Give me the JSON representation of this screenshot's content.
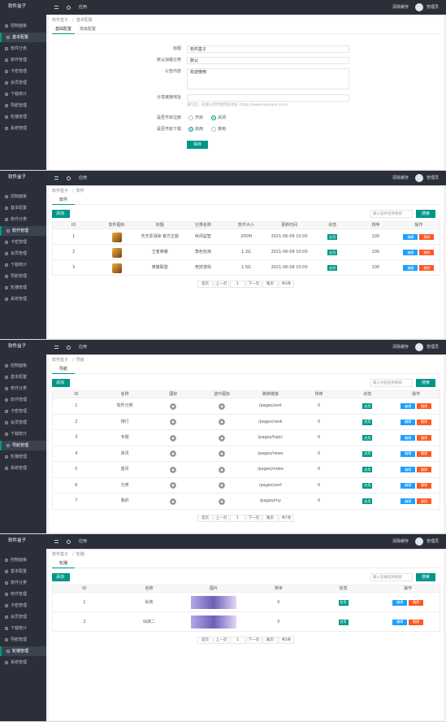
{
  "brand": "软件盒子",
  "menu": [
    "控制面板",
    "基本配置",
    "软件分类",
    "软件管理",
    "卡密管理",
    "会员管理",
    "下载统计",
    "导航管理",
    "轮播管理",
    "系统管理"
  ],
  "topbar": {
    "app": "应用",
    "cache": "清除缓存",
    "user": "管理员"
  },
  "screens": [
    {
      "active_menu": 1,
      "breadcrumb": [
        "软件盒子",
        "基本配置"
      ],
      "tabs": [
        "基础配置",
        "高级配置"
      ],
      "form": {
        "fields": [
          {
            "label": "标题",
            "value": "软件盒子"
          },
          {
            "label": "默认加载分类",
            "value": "默认"
          },
          {
            "label": "公告内容",
            "value": "欢迎使用"
          },
          {
            "label": "分享链接地址",
            "hint": "填写后，前端分享时使用该地址 (http://www.example.com)"
          }
        ],
        "radios": [
          {
            "label": "是否开启注册",
            "options": [
              "开启",
              "关闭"
            ],
            "selected": 1
          },
          {
            "label": "是否开启下载",
            "options": [
              "启用",
              "禁用"
            ],
            "selected": 0
          }
        ],
        "submit": "保存"
      }
    },
    {
      "active_menu": 3,
      "breadcrumb": [
        "软件盒子",
        "软件"
      ],
      "tabs": [
        "软件"
      ],
      "add": "添加",
      "search_placeholder": "输入软件名称搜索",
      "search": "搜索",
      "columns": [
        "ID",
        "软件图标",
        "标题",
        "分类名称",
        "软件大小",
        "更新时间",
        "状态",
        "排序",
        "操作"
      ],
      "badge_column": 6,
      "rows": [
        [
          1,
          null,
          "天天爱消除·官方正版",
          "休闲益智",
          "200M",
          "2021-06-08 10:00",
          "启用",
          100
        ],
        [
          2,
          null,
          "王者荣耀",
          "角色扮演",
          "1.2G",
          "2021-06-08 10:00",
          "启用",
          100
        ],
        [
          3,
          null,
          "英雄联盟",
          "竞技游戏",
          "1.5G",
          "2021-06-08 10:00",
          "启用",
          100
        ]
      ],
      "actions": [
        "编辑",
        "删除"
      ],
      "pager": [
        "首页",
        "上一页",
        "1",
        "下一页",
        "尾页",
        "共3条"
      ]
    },
    {
      "active_menu": 7,
      "breadcrumb": [
        "软件盒子",
        "导航"
      ],
      "tabs": [
        "导航"
      ],
      "add": "添加",
      "search_placeholder": "输入导航名称搜索",
      "search": "搜索",
      "columns": [
        "ID",
        "名称",
        "图标",
        "选中图标",
        "跳转链接",
        "排序",
        "状态",
        "操作"
      ],
      "badge_column": 6,
      "rows": [
        [
          1,
          "软件分类",
          null,
          null,
          "/pages/sort",
          0,
          "启用"
        ],
        [
          2,
          "排行",
          null,
          null,
          "/pages/rank",
          0,
          "启用"
        ],
        [
          3,
          "专题",
          null,
          null,
          "/pages/topic",
          0,
          "启用"
        ],
        [
          4,
          "资讯",
          null,
          null,
          "/pages/news",
          0,
          "启用"
        ],
        [
          5,
          "首页",
          null,
          null,
          "/pages/index",
          0,
          "启用"
        ],
        [
          6,
          "分类",
          null,
          null,
          "/pages/sort",
          0,
          "启用"
        ],
        [
          7,
          "我的",
          null,
          null,
          "/pages/my",
          0,
          "启用"
        ]
      ],
      "actions": [
        "编辑",
        "删除"
      ],
      "pager": [
        "首页",
        "上一页",
        "1",
        "下一页",
        "尾页",
        "共7条"
      ]
    },
    {
      "active_menu": 8,
      "breadcrumb": [
        "软件盒子",
        "轮播"
      ],
      "tabs": [
        "轮播"
      ],
      "add": "添加",
      "search_placeholder": "输入轮播名称搜索",
      "search": "搜索",
      "columns": [
        "ID",
        "名称",
        "图片",
        "排序",
        "状态",
        "操作"
      ],
      "badge_column": 4,
      "rows": [
        [
          1,
          "仙侠",
          null,
          0,
          "启用"
        ],
        [
          2,
          "仙侠二",
          null,
          0,
          "启用"
        ]
      ],
      "actions": [
        "编辑",
        "删除"
      ],
      "pager": [
        "首页",
        "上一页",
        "1",
        "下一页",
        "尾页",
        "共2条"
      ]
    }
  ]
}
